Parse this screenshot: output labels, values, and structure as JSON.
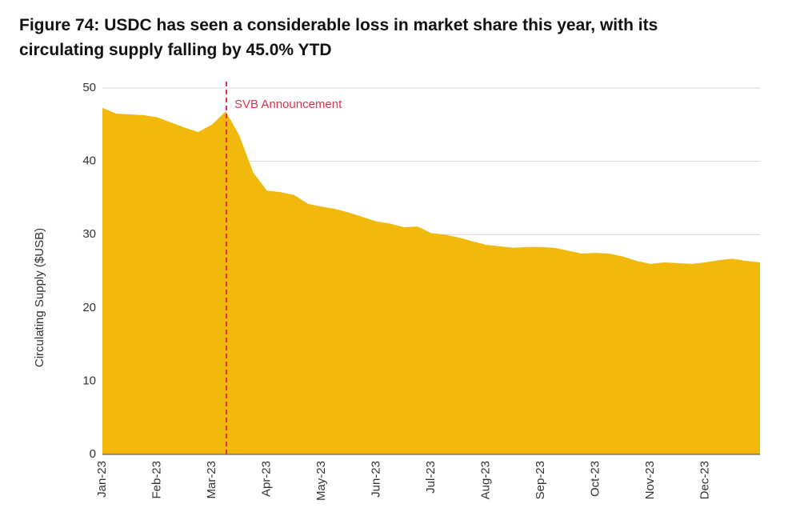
{
  "chart_data": {
    "type": "area",
    "title": "Figure 74: USDC has seen a considerable loss in market share this year, with its circulating supply falling by 45.0% YTD",
    "y_label": "Circulating Supply ($USB)",
    "annotation": "SVB Announcement",
    "categories": [
      "Jan-23",
      null,
      null,
      null,
      "Feb-23",
      null,
      null,
      null,
      "Mar-23",
      null,
      null,
      null,
      "Apr-23",
      null,
      null,
      null,
      "May-23",
      null,
      null,
      null,
      "Jun-23",
      null,
      null,
      null,
      "Jul-23",
      null,
      null,
      null,
      "Aug-23",
      null,
      null,
      null,
      "Sep-23",
      null,
      null,
      null,
      "Oct-23",
      null,
      null,
      null,
      "Nov-23",
      null,
      null,
      null,
      "Dec-23",
      null,
      null,
      null,
      null
    ],
    "values": [
      47.3,
      46.5,
      46.4,
      46.3,
      46.0,
      45.3,
      44.6,
      44.0,
      45.0,
      46.8,
      43.5,
      38.5,
      36.0,
      35.8,
      35.4,
      34.2,
      33.8,
      33.5,
      33.0,
      32.4,
      31.8,
      31.5,
      31.0,
      31.1,
      30.2,
      30.0,
      29.6,
      29.1,
      28.6,
      28.4,
      28.2,
      28.3,
      28.3,
      28.2,
      27.8,
      27.4,
      27.5,
      27.4,
      27.0,
      26.4,
      26.0,
      26.2,
      26.1,
      26.0,
      26.2,
      26.5,
      26.7,
      26.4,
      26.2
    ],
    "color": "#f0b90b",
    "ylim": [
      0,
      50
    ],
    "yticks": [
      0,
      10,
      20,
      30,
      40,
      50
    ],
    "grid": true
  }
}
